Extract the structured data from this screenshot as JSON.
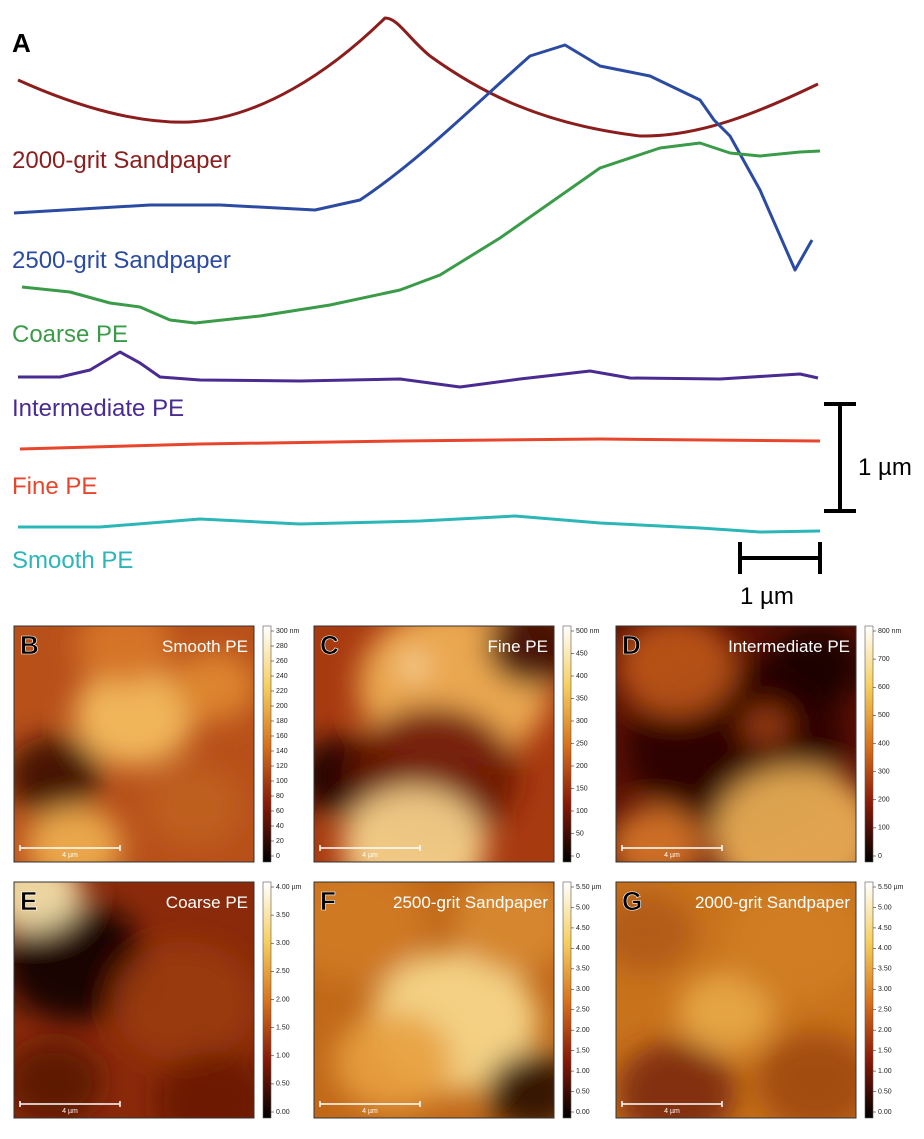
{
  "panel_a": {
    "label": "A",
    "profiles": [
      {
        "name": "2000-grit Sandpaper",
        "color": "#8c1d1d"
      },
      {
        "name": "2500-grit Sandpaper",
        "color": "#2b4ba3"
      },
      {
        "name": "Coarse PE",
        "color": "#3a9b48"
      },
      {
        "name": "Intermediate PE",
        "color": "#4a2b91"
      },
      {
        "name": "Fine PE",
        "color": "#e8462c"
      },
      {
        "name": "Smooth PE",
        "color": "#2bb6b8"
      }
    ],
    "scale_bars": {
      "vertical": "1 µm",
      "horizontal": "1 µm"
    }
  },
  "panels": [
    {
      "label": "B",
      "title": "Smooth PE",
      "scale_bar": "4 µm",
      "colorbar_ticks": [
        "300 nm",
        "280",
        "260",
        "240",
        "220",
        "200",
        "180",
        "160",
        "140",
        "120",
        "100",
        "80",
        "60",
        "40",
        "20",
        "0"
      ]
    },
    {
      "label": "C",
      "title": "Fine PE",
      "scale_bar": "4 µm",
      "colorbar_ticks": [
        "500 nm",
        "450",
        "400",
        "350",
        "300",
        "250",
        "200",
        "150",
        "100",
        "50",
        "0"
      ]
    },
    {
      "label": "D",
      "title": "Intermediate PE",
      "scale_bar": "4 µm",
      "colorbar_ticks": [
        "800 nm",
        "700",
        "600",
        "500",
        "400",
        "300",
        "200",
        "100",
        "0"
      ]
    },
    {
      "label": "E",
      "title": "Coarse PE",
      "scale_bar": "4 µm",
      "colorbar_ticks": [
        "4.00 µm",
        "3.50",
        "3.00",
        "2.50",
        "2.00",
        "1.50",
        "1.00",
        "0.50",
        "0.00"
      ]
    },
    {
      "label": "F",
      "title": "2500-grit Sandpaper",
      "scale_bar": "4 µm",
      "colorbar_ticks": [
        "5.50 µm",
        "5.00",
        "4.50",
        "4.00",
        "3.50",
        "3.00",
        "2.50",
        "2.00",
        "1.50",
        "1.00",
        "0.50",
        "0.00"
      ]
    },
    {
      "label": "G",
      "title": "2000-grit Sandpaper",
      "scale_bar": "4 µm",
      "colorbar_ticks": [
        "5.50 µm",
        "5.00",
        "4.50",
        "4.00",
        "3.50",
        "3.00",
        "2.50",
        "2.00",
        "1.50",
        "1.00",
        "0.50",
        "0.00"
      ]
    }
  ]
}
